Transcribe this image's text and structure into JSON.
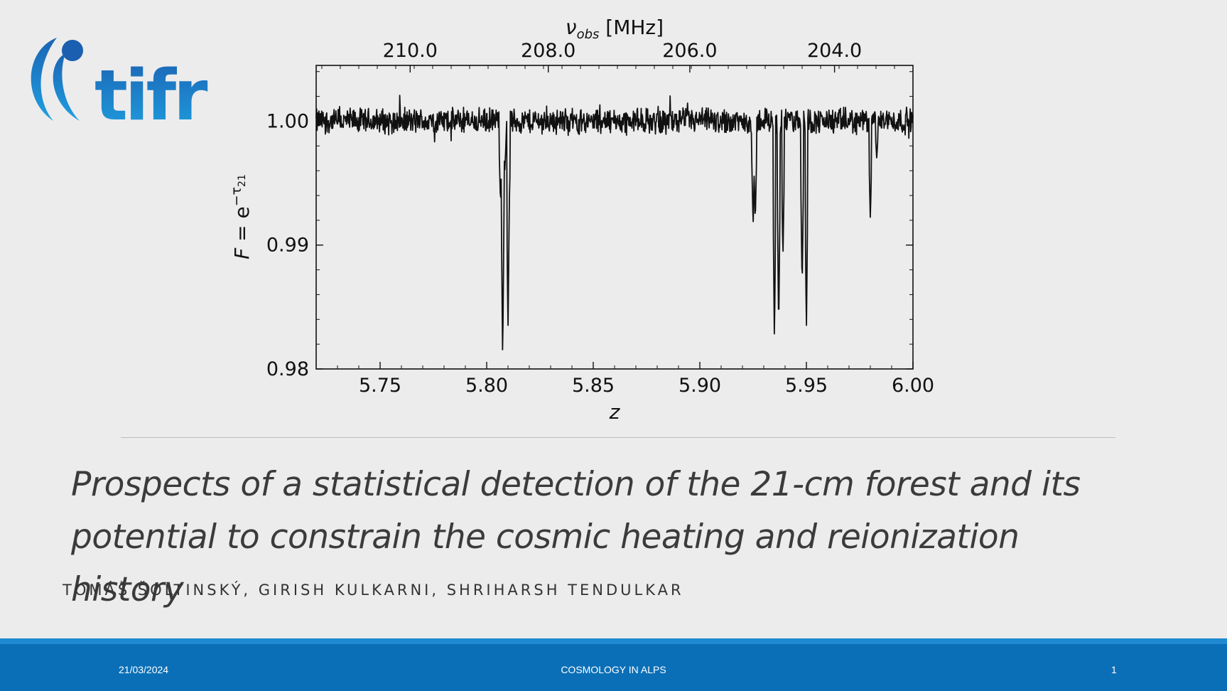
{
  "logo": {
    "text": "tifr"
  },
  "chart_data": {
    "type": "line",
    "ylabel": "F = e^{-τ21}",
    "ylabel_parts": {
      "F": "F",
      "eq": " = e",
      "sup": "−τ",
      "sub": "21"
    },
    "xlabel": "z",
    "top_xlabel": {
      "nu": "ν",
      "sub": "obs",
      "rest": " [MHz]"
    },
    "xlim": [
      5.72,
      6.0
    ],
    "ylim": [
      0.98,
      1.0045
    ],
    "xticks": [
      "5.75",
      "5.80",
      "5.85",
      "5.90",
      "5.95",
      "6.00"
    ],
    "yticks": [
      "0.98",
      "0.99",
      "1.00"
    ],
    "top_xticks": [
      "210.0",
      "208.0",
      "206.0",
      "204.0"
    ],
    "top_xtick_z": [
      5.7641,
      5.8289,
      5.8953,
      5.9632
    ],
    "series": [
      {
        "name": "",
        "noise_level": 1.0,
        "noise_amplitude": 0.0011,
        "absorption_lines": [
          {
            "z": 5.8065,
            "min": 0.9933
          },
          {
            "z": 5.8075,
            "min": 0.9805
          },
          {
            "z": 5.8085,
            "min": 0.996
          },
          {
            "z": 5.81,
            "min": 0.983
          },
          {
            "z": 5.8105,
            "min": 0.9925
          },
          {
            "z": 5.925,
            "min": 0.9915
          },
          {
            "z": 5.926,
            "min": 0.9918
          },
          {
            "z": 5.935,
            "min": 0.982
          },
          {
            "z": 5.937,
            "min": 0.983
          },
          {
            "z": 5.939,
            "min": 0.989
          },
          {
            "z": 5.948,
            "min": 0.9865
          },
          {
            "z": 5.95,
            "min": 0.983
          },
          {
            "z": 5.98,
            "min": 0.992
          },
          {
            "z": 5.983,
            "min": 0.997
          }
        ]
      }
    ]
  },
  "slide": {
    "title_line1": "Prospects of a statistical detection of the 21-cm forest and its",
    "title_line2": "potential to constrain the cosmic heating and reionization history",
    "authors": "TOMÁŠ ŠOLTINSKÝ, GIRISH KULKARNI, SHRIHARSH TENDULKAR"
  },
  "footer": {
    "date": "21/03/2024",
    "conference": "COSMOLOGY IN ALPS",
    "page": "1"
  },
  "colors": {
    "footer": "#0a6fb7",
    "footer_stripe": "#1f8ad1",
    "logo": "#1a73c2"
  }
}
